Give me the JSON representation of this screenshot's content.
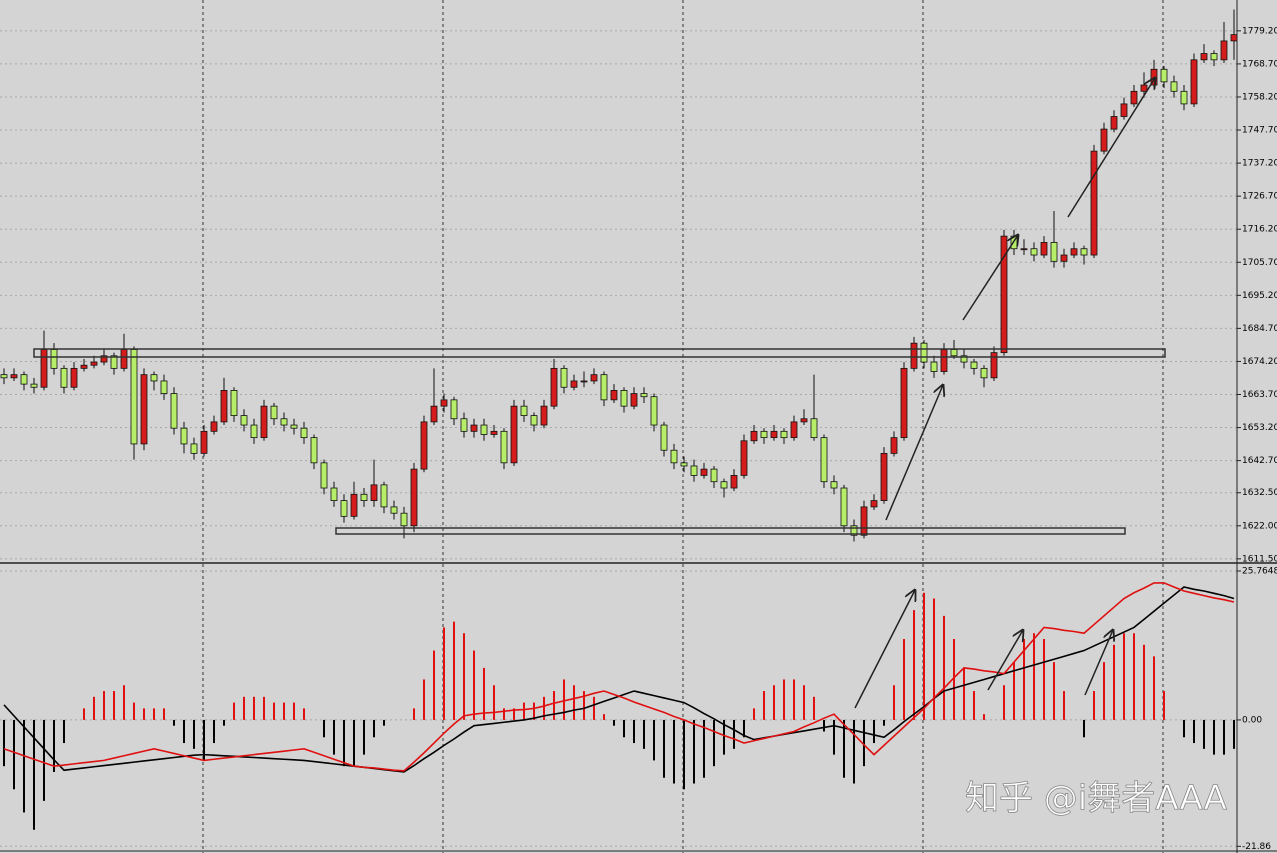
{
  "chart_data": [
    {
      "type": "candlestick",
      "up_color": "#d41c1c",
      "down_color": "#b6ee6a",
      "grid": true,
      "ylim": [
        1610.5,
        1789.0
      ],
      "yticks": [
        {
          "value": 1779.2,
          "label": "1779.20"
        },
        {
          "value": 1768.7,
          "label": "1768.70"
        },
        {
          "value": 1758.2,
          "label": "1758.20"
        },
        {
          "value": 1747.7,
          "label": "1747.70"
        },
        {
          "value": 1737.2,
          "label": "1737.20"
        },
        {
          "value": 1726.7,
          "label": "1726.70"
        },
        {
          "value": 1716.2,
          "label": "1716.20"
        },
        {
          "value": 1705.7,
          "label": "1705.70"
        },
        {
          "value": 1695.2,
          "label": "1695.20"
        },
        {
          "value": 1684.7,
          "label": "1684.70"
        },
        {
          "value": 1674.2,
          "label": "1674.20"
        },
        {
          "value": 1663.7,
          "label": "1663.70"
        },
        {
          "value": 1653.2,
          "label": "1653.20"
        },
        {
          "value": 1642.7,
          "label": "1642.70"
        },
        {
          "value": 1632.5,
          "label": "1632.50"
        },
        {
          "value": 1622,
          "label": "1622.00"
        },
        {
          "value": 1611.5,
          "label": "1611.50"
        }
      ],
      "ohlc": [
        [
          1670,
          1672,
          1667,
          1669
        ],
        [
          1669,
          1672,
          1668,
          1670
        ],
        [
          1670,
          1671,
          1665,
          1667
        ],
        [
          1667,
          1669,
          1664,
          1666
        ],
        [
          1666,
          1684,
          1665,
          1678
        ],
        [
          1678,
          1680,
          1670,
          1672
        ],
        [
          1672,
          1673,
          1664,
          1666
        ],
        [
          1666,
          1674,
          1665,
          1672
        ],
        [
          1672,
          1675,
          1671,
          1673
        ],
        [
          1673,
          1676,
          1672,
          1674
        ],
        [
          1674,
          1678,
          1673,
          1676
        ],
        [
          1676,
          1677,
          1670,
          1672
        ],
        [
          1672,
          1683,
          1671,
          1678
        ],
        [
          1678,
          1679,
          1643,
          1648
        ],
        [
          1648,
          1672,
          1646,
          1670
        ],
        [
          1670,
          1671,
          1665,
          1668
        ],
        [
          1668,
          1670,
          1662,
          1664
        ],
        [
          1664,
          1666,
          1651,
          1653
        ],
        [
          1653,
          1655,
          1645,
          1648
        ],
        [
          1648,
          1650,
          1643,
          1645
        ],
        [
          1645,
          1654,
          1644,
          1652
        ],
        [
          1652,
          1657,
          1651,
          1655
        ],
        [
          1655,
          1669,
          1654,
          1665
        ],
        [
          1665,
          1666,
          1655,
          1657
        ],
        [
          1657,
          1659,
          1652,
          1654
        ],
        [
          1654,
          1656,
          1648,
          1650
        ],
        [
          1650,
          1662,
          1649,
          1660
        ],
        [
          1660,
          1661,
          1654,
          1656
        ],
        [
          1656,
          1658,
          1652,
          1654
        ],
        [
          1654,
          1656,
          1651,
          1653
        ],
        [
          1653,
          1655,
          1648,
          1650
        ],
        [
          1650,
          1651,
          1640,
          1642
        ],
        [
          1642,
          1643,
          1632,
          1634
        ],
        [
          1634,
          1636,
          1628,
          1630
        ],
        [
          1630,
          1632,
          1623,
          1625
        ],
        [
          1625,
          1636,
          1624,
          1632
        ],
        [
          1632,
          1634,
          1628,
          1630
        ],
        [
          1630,
          1643,
          1628,
          1635
        ],
        [
          1635,
          1636,
          1626,
          1628
        ],
        [
          1628,
          1630,
          1624,
          1626
        ],
        [
          1626,
          1628,
          1618,
          1622
        ],
        [
          1622,
          1642,
          1620,
          1640
        ],
        [
          1640,
          1657,
          1639,
          1655
        ],
        [
          1655,
          1672,
          1654,
          1660
        ],
        [
          1660,
          1664,
          1658,
          1662
        ],
        [
          1662,
          1663,
          1654,
          1656
        ],
        [
          1656,
          1658,
          1650,
          1652
        ],
        [
          1652,
          1656,
          1650,
          1654
        ],
        [
          1654,
          1656,
          1649,
          1651
        ],
        [
          1651,
          1654,
          1650,
          1652
        ],
        [
          1652,
          1653,
          1640,
          1642
        ],
        [
          1642,
          1662,
          1641,
          1660
        ],
        [
          1660,
          1662,
          1655,
          1657
        ],
        [
          1657,
          1658,
          1652,
          1654
        ],
        [
          1654,
          1662,
          1653,
          1660
        ],
        [
          1660,
          1675,
          1659,
          1672
        ],
        [
          1672,
          1673,
          1664,
          1666
        ],
        [
          1666,
          1670,
          1665,
          1668
        ],
        [
          1668,
          1671,
          1666,
          1668
        ],
        [
          1668,
          1672,
          1667,
          1670
        ],
        [
          1670,
          1671,
          1660,
          1662
        ],
        [
          1662,
          1667,
          1661,
          1665
        ],
        [
          1665,
          1666,
          1658,
          1660
        ],
        [
          1660,
          1666,
          1659,
          1664
        ],
        [
          1664,
          1666,
          1661,
          1663
        ],
        [
          1663,
          1664,
          1652,
          1654
        ],
        [
          1654,
          1655,
          1644,
          1646
        ],
        [
          1646,
          1648,
          1640,
          1642
        ],
        [
          1642,
          1644,
          1639,
          1641
        ],
        [
          1641,
          1643,
          1636,
          1638
        ],
        [
          1638,
          1642,
          1637,
          1640
        ],
        [
          1640,
          1641,
          1634,
          1636
        ],
        [
          1636,
          1637,
          1631,
          1634
        ],
        [
          1634,
          1640,
          1633,
          1638
        ],
        [
          1638,
          1651,
          1637,
          1649
        ],
        [
          1649,
          1654,
          1648,
          1652
        ],
        [
          1652,
          1653,
          1648,
          1650
        ],
        [
          1650,
          1654,
          1649,
          1652
        ],
        [
          1652,
          1653,
          1648,
          1650
        ],
        [
          1650,
          1657,
          1649,
          1655
        ],
        [
          1655,
          1659,
          1654,
          1656
        ],
        [
          1656,
          1670,
          1649,
          1650
        ],
        [
          1650,
          1651,
          1634,
          1636
        ],
        [
          1636,
          1638,
          1632,
          1634
        ],
        [
          1634,
          1635,
          1620,
          1622
        ],
        [
          1622,
          1624,
          1617,
          1619
        ],
        [
          1619,
          1630,
          1618,
          1628
        ],
        [
          1628,
          1632,
          1627,
          1630
        ],
        [
          1630,
          1647,
          1629,
          1645
        ],
        [
          1645,
          1652,
          1644,
          1650
        ],
        [
          1650,
          1674,
          1649,
          1672
        ],
        [
          1672,
          1682,
          1671,
          1680
        ],
        [
          1680,
          1681,
          1672,
          1674
        ],
        [
          1674,
          1676,
          1669,
          1671
        ],
        [
          1671,
          1680,
          1670,
          1678
        ],
        [
          1678,
          1681,
          1675,
          1676
        ],
        [
          1676,
          1678,
          1672,
          1674
        ],
        [
          1674,
          1675,
          1670,
          1672
        ],
        [
          1672,
          1673,
          1666,
          1669
        ],
        [
          1669,
          1679,
          1668,
          1677
        ],
        [
          1677,
          1716,
          1676,
          1714
        ],
        [
          1714,
          1716,
          1708,
          1710
        ],
        [
          1710,
          1713,
          1708,
          1710
        ],
        [
          1710,
          1712,
          1706,
          1708
        ],
        [
          1708,
          1714,
          1707,
          1712
        ],
        [
          1712,
          1722,
          1704,
          1706
        ],
        [
          1706,
          1710,
          1704,
          1708
        ],
        [
          1708,
          1712,
          1707,
          1710
        ],
        [
          1710,
          1711,
          1705,
          1708
        ],
        [
          1708,
          1743,
          1707,
          1741
        ],
        [
          1741,
          1750,
          1740,
          1748
        ],
        [
          1748,
          1754,
          1747,
          1752
        ],
        [
          1752,
          1758,
          1751,
          1756
        ],
        [
          1756,
          1762,
          1755,
          1760
        ],
        [
          1760,
          1766,
          1758,
          1762
        ],
        [
          1762,
          1770,
          1761,
          1767
        ],
        [
          1767,
          1768,
          1761,
          1763
        ],
        [
          1763,
          1765,
          1758,
          1760
        ],
        [
          1760,
          1762,
          1754,
          1756
        ],
        [
          1756,
          1772,
          1755,
          1770
        ],
        [
          1770,
          1775,
          1769,
          1772
        ],
        [
          1772,
          1773,
          1768,
          1770
        ],
        [
          1770,
          1782,
          1769,
          1776
        ],
        [
          1776,
          1786,
          1770,
          1778
        ]
      ]
    },
    {
      "type": "macd",
      "grid": true,
      "ylim": [
        -22.5,
        26.8
      ],
      "yticks": [
        25.7648,
        {
          "value": 0,
          "label": "0.00"
        },
        -21.86
      ],
      "histogram": {
        "color": "#e01010",
        "negative_color": "#000000",
        "values": [
          -8,
          -12,
          -16,
          -19,
          -14,
          -9,
          -4,
          0,
          2,
          4,
          5,
          5,
          6,
          3,
          2,
          2,
          2,
          -1,
          -4,
          -5,
          -7,
          -4,
          -1,
          3,
          4,
          4,
          4,
          3,
          3,
          3,
          2,
          0,
          -3,
          -6,
          -8,
          -8,
          -6,
          -3,
          -1,
          0,
          0,
          2,
          7,
          12,
          16,
          17,
          15,
          12,
          9,
          6,
          2,
          2,
          3,
          3,
          4,
          5,
          7,
          6,
          5,
          4,
          1,
          -1,
          -3,
          -4,
          -5,
          -7,
          -10,
          -11,
          -12,
          -11,
          -10,
          -8,
          -6,
          -5,
          -3,
          2,
          5,
          6,
          7,
          7,
          6,
          4,
          -2,
          -6,
          -10,
          -11,
          -8,
          -4,
          -1,
          6,
          14,
          19,
          22,
          21,
          18,
          14,
          9,
          5,
          1,
          0,
          6,
          10,
          14,
          15,
          14,
          10,
          5,
          0,
          -3,
          5,
          10,
          13,
          15,
          15,
          13,
          11,
          5,
          0,
          -3,
          -4,
          -5,
          -6,
          -6,
          -5
        ]
      },
      "series": [
        {
          "color": "#000000",
          "values": [
            2.6,
            0.7,
            -1.2,
            -3.1,
            -5,
            -6.9,
            -8.7,
            -8.5,
            -8.3,
            -8.1,
            -7.9,
            -7.7,
            -7.5,
            -7.3,
            -7.1,
            -6.9,
            -6.7,
            -6.5,
            -6.3,
            -6.1,
            -6,
            -6.1,
            -6.2,
            -6.3,
            -6.4,
            -6.5,
            -6.6,
            -6.7,
            -6.8,
            -6.9,
            -7,
            -7.2,
            -7.4,
            -7.6,
            -7.8,
            -8,
            -8.2,
            -8.4,
            -8.6,
            -8.8,
            -9,
            -7.9,
            -6.7,
            -5.6,
            -4.4,
            -3.3,
            -2.1,
            -1,
            -0.8,
            -0.6,
            -0.4,
            -0.2,
            0,
            0.3,
            0.7,
            1,
            1.3,
            1.7,
            2,
            2.6,
            3.2,
            3.8,
            4.4,
            5,
            4.6,
            4.2,
            3.8,
            3.4,
            3,
            2.1,
            1.1,
            0.2,
            -0.8,
            -1.7,
            -2.7,
            -3.4,
            -3.1,
            -2.8,
            -2.5,
            -2.2,
            -1.9,
            -1.6,
            -1.3,
            -1,
            -1.4,
            -1.8,
            -2.2,
            -2.6,
            -3,
            -1.7,
            -0.3,
            1,
            2.3,
            3.7,
            5,
            5.5,
            6,
            6.5,
            7,
            7.5,
            8,
            8.5,
            9,
            9.5,
            10,
            10.5,
            11,
            11.5,
            12,
            12.8,
            13.6,
            14.4,
            15.2,
            16,
            17.4,
            18.8,
            20.2,
            21.6,
            23,
            22.6,
            22.3,
            21.9,
            21.5,
            21
          ]
        },
        {
          "color": "#e01010",
          "values": [
            -5,
            -5.6,
            -6.2,
            -6.8,
            -7.4,
            -8,
            -7.8,
            -7.6,
            -7.4,
            -7.2,
            -7,
            -6.6,
            -6.2,
            -5.8,
            -5.4,
            -5,
            -5.4,
            -5.8,
            -6.2,
            -6.6,
            -7,
            -6.8,
            -6.6,
            -6.4,
            -6.2,
            -6,
            -5.8,
            -5.6,
            -5.4,
            -5.2,
            -5,
            -5.6,
            -6.2,
            -6.8,
            -7.4,
            -8,
            -8.2,
            -8.3,
            -8.5,
            -8.7,
            -8.8,
            -7.3,
            -5.7,
            -4,
            -2.3,
            -0.7,
            0.7,
            1,
            1.2,
            1.3,
            1.5,
            1.7,
            1.8,
            2,
            2.4,
            2.9,
            3.3,
            3.7,
            4.1,
            4.6,
            5,
            4.4,
            3.8,
            3.1,
            2.5,
            1.9,
            1.3,
            0.6,
            0,
            -0.7,
            -1.3,
            -2,
            -2.7,
            -3.3,
            -4,
            -3.6,
            -3.2,
            -2.8,
            -2.4,
            -2,
            -1.2,
            -0.5,
            0.3,
            1,
            -0.8,
            -2.5,
            -4.3,
            -6,
            -4.4,
            -2.8,
            -1.2,
            0.4,
            2,
            3.8,
            5.5,
            7.3,
            9,
            8.8,
            8.5,
            8.3,
            8,
            10,
            12,
            14,
            16,
            15.8,
            15.5,
            15.3,
            15,
            16.5,
            18,
            19.5,
            21,
            22,
            22.8,
            23.7,
            23.7,
            23,
            22.3,
            21.9,
            21.5,
            21.1,
            20.8,
            20.4
          ]
        }
      ]
    }
  ],
  "watermark": "知乎 @i舞者AAA"
}
